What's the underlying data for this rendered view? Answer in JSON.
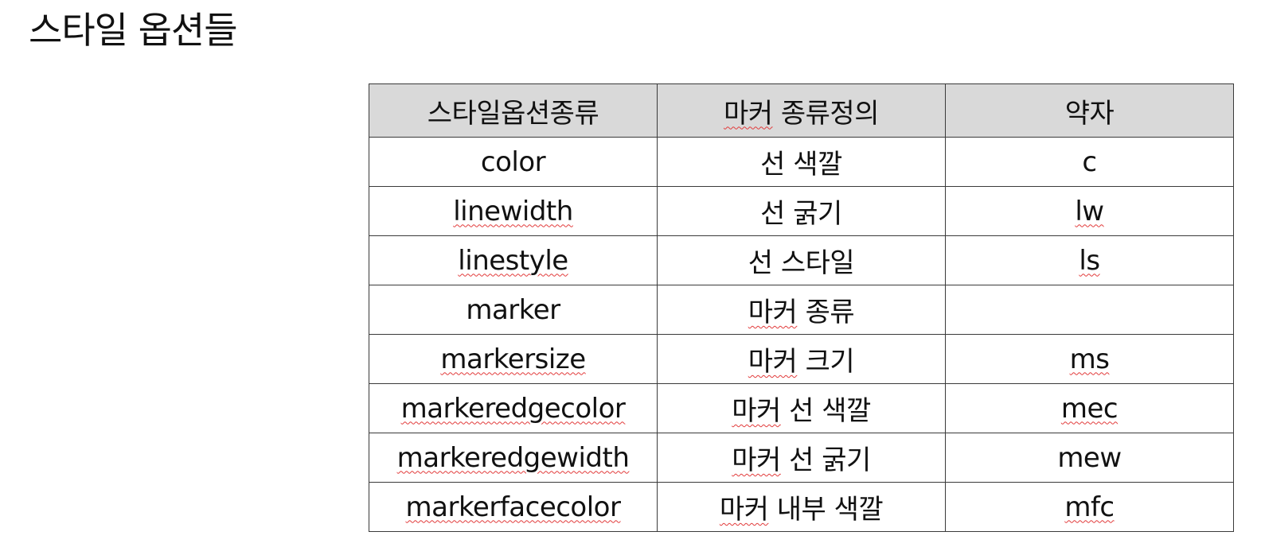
{
  "page": {
    "title": "스타일 옵션들"
  },
  "table": {
    "headers": [
      "스타일옵션종류",
      "마커 종류정의",
      "약자"
    ],
    "rows": [
      {
        "option": "color",
        "description": "선 색깔",
        "abbr": "c"
      },
      {
        "option": "linewidth",
        "description": "선 굵기",
        "abbr": "lw"
      },
      {
        "option": "linestyle",
        "description": "선 스타일",
        "abbr": "ls"
      },
      {
        "option": "marker",
        "description": "마커 종류",
        "abbr": ""
      },
      {
        "option": "markersize",
        "description": "마커 크기",
        "abbr": "ms"
      },
      {
        "option": "markeredgecolor",
        "description": "마커 선 색깔",
        "abbr": "mec"
      },
      {
        "option": "markeredgewidth",
        "description": "마커 선 굵기",
        "abbr": "mew"
      },
      {
        "option": "markerfacecolor",
        "description": "마커 내부 색깔",
        "abbr": "mfc"
      }
    ]
  },
  "colors": {
    "header_background": "#d9d9d9",
    "border": "#3a3a3a",
    "spellcheck_underline": "#e23b3b"
  }
}
